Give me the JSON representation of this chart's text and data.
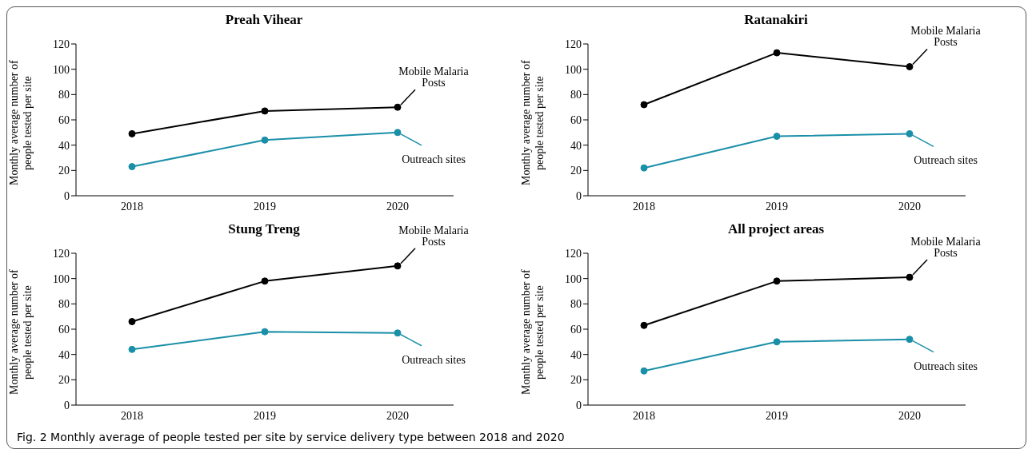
{
  "chart_data": [
    {
      "type": "line",
      "title": "Preah Vihear",
      "ylabel": "Monthly average number of people tested per site",
      "categories": [
        "2018",
        "2019",
        "2020"
      ],
      "ylim": [
        0,
        120
      ],
      "yticks": [
        0,
        20,
        40,
        60,
        80,
        100,
        120
      ],
      "marker": "circle",
      "series": [
        {
          "name": "Mobile Malaria Posts",
          "color": "#000000",
          "values": [
            49,
            67,
            70
          ]
        },
        {
          "name": "Outreach sites",
          "color": "#1a8fa8",
          "values": [
            23,
            44,
            50
          ]
        }
      ]
    },
    {
      "type": "line",
      "title": "Ratanakiri",
      "ylabel": "Monthly average number of people tested per site",
      "categories": [
        "2018",
        "2019",
        "2020"
      ],
      "ylim": [
        0,
        120
      ],
      "yticks": [
        0,
        20,
        40,
        60,
        80,
        100,
        120
      ],
      "marker": "circle",
      "series": [
        {
          "name": "Mobile Malaria Posts",
          "color": "#000000",
          "values": [
            72,
            113,
            102
          ]
        },
        {
          "name": "Outreach sites",
          "color": "#1a8fa8",
          "values": [
            22,
            47,
            49
          ]
        }
      ]
    },
    {
      "type": "line",
      "title": "Stung Treng",
      "ylabel": "Monthly average number of people tested per site",
      "categories": [
        "2018",
        "2019",
        "2020"
      ],
      "ylim": [
        0,
        120
      ],
      "yticks": [
        0,
        20,
        40,
        60,
        80,
        100,
        120
      ],
      "marker": "circle",
      "series": [
        {
          "name": "Mobile Malaria Posts",
          "color": "#000000",
          "values": [
            66,
            98,
            110
          ]
        },
        {
          "name": "Outreach sites",
          "color": "#1a8fa8",
          "values": [
            44,
            58,
            57
          ]
        }
      ]
    },
    {
      "type": "line",
      "title": "All project areas",
      "ylabel": "Monthly average number of people tested per site",
      "categories": [
        "2018",
        "2019",
        "2020"
      ],
      "ylim": [
        0,
        120
      ],
      "yticks": [
        0,
        20,
        40,
        60,
        80,
        100,
        120
      ],
      "marker": "circle",
      "annotations": [
        "Fig. 2  Monthly average of people tested per site by service delivery type between 2018 and 2020"
      ],
      "series": [
        {
          "name": "Mobile Malaria Posts",
          "color": "#000000",
          "values": [
            63,
            98,
            101
          ]
        },
        {
          "name": "Outreach sites",
          "color": "#1a8fa8",
          "values": [
            27,
            50,
            52
          ]
        }
      ]
    }
  ]
}
